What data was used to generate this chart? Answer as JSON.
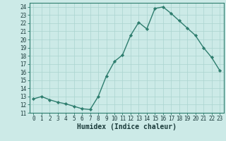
{
  "x": [
    0,
    1,
    2,
    3,
    4,
    5,
    6,
    7,
    8,
    9,
    10,
    11,
    12,
    13,
    14,
    15,
    16,
    17,
    18,
    19,
    20,
    21,
    22,
    23
  ],
  "y": [
    12.7,
    13.0,
    12.6,
    12.3,
    12.1,
    11.8,
    11.5,
    11.4,
    13.0,
    15.5,
    17.3,
    18.1,
    20.5,
    22.1,
    21.3,
    23.8,
    24.0,
    23.2,
    22.3,
    21.4,
    20.5,
    19.0,
    17.8,
    16.2
  ],
  "line_color": "#2e7d6e",
  "marker": "D",
  "marker_size": 2.2,
  "line_width": 1.0,
  "bg_color": "#cceae7",
  "grid_color": "#aad4d0",
  "plot_bg_color": "#cceae7",
  "xlabel": "Humidex (Indice chaleur)",
  "ylim": [
    11,
    24.5
  ],
  "xlim": [
    -0.5,
    23.5
  ],
  "yticks": [
    11,
    12,
    13,
    14,
    15,
    16,
    17,
    18,
    19,
    20,
    21,
    22,
    23,
    24
  ],
  "xticks": [
    0,
    1,
    2,
    3,
    4,
    5,
    6,
    7,
    8,
    9,
    10,
    11,
    12,
    13,
    14,
    15,
    16,
    17,
    18,
    19,
    20,
    21,
    22,
    23
  ],
  "tick_fontsize": 5.5,
  "label_fontsize": 7.0,
  "spine_color": "#2e7d6e",
  "tick_color": "#2e7d6e",
  "label_color": "#1a3a3a"
}
